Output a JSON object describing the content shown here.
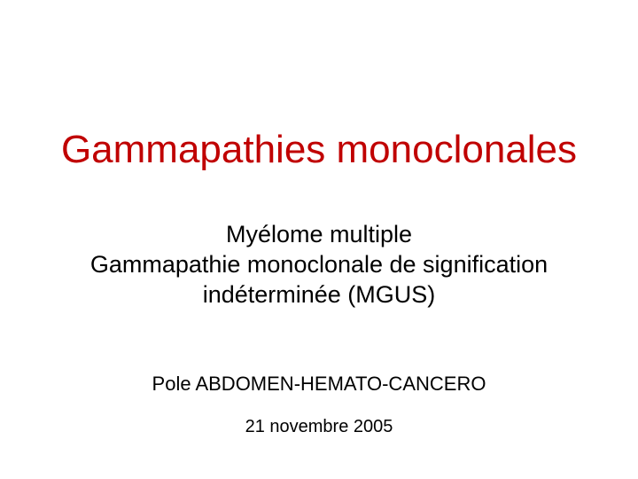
{
  "slide": {
    "title": "Gammapathies monoclonales",
    "subtitle_line1": "Myélome multiple",
    "subtitle_line2": "Gammapathie monoclonale de signification",
    "subtitle_line3": "indéterminée (MGUS)",
    "department": "Pole ABDOMEN-HEMATO-CANCERO",
    "date": "21 novembre 2005",
    "colors": {
      "title": "#c00000",
      "body": "#000000",
      "background": "#ffffff"
    },
    "typography": {
      "font_family": "Comic Sans MS",
      "title_fontsize": 44,
      "subtitle_fontsize": 27,
      "department_fontsize": 22,
      "date_fontsize": 20
    }
  }
}
